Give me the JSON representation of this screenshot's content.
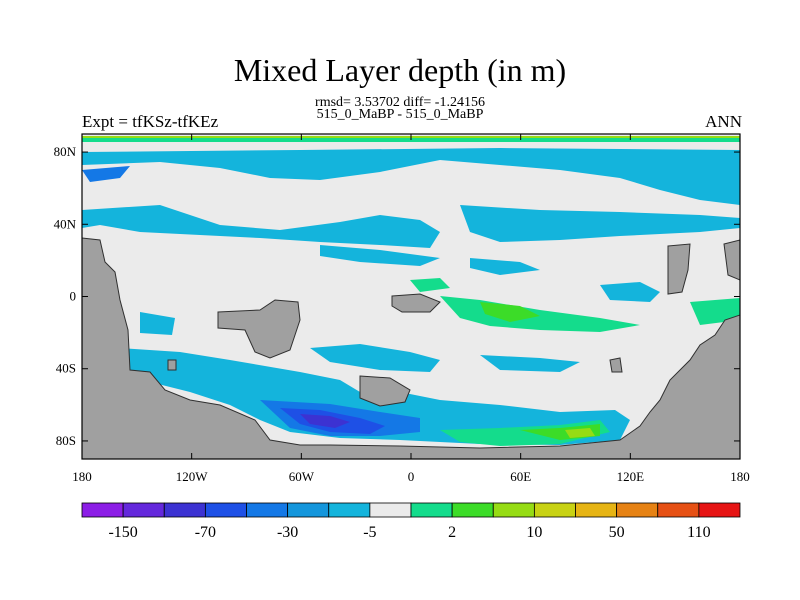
{
  "title": "Mixed Layer depth (in m)",
  "stats": "rmsd= 3.53702 diff= -1.24156",
  "subtitle": "515_0_MaBP - 515_0_MaBP",
  "left_label": "Expt = tfKSz-tfKEz",
  "right_label": "ANN",
  "map": {
    "x_ticks": [
      "180",
      "120W",
      "60W",
      "0",
      "60E",
      "120E",
      "180"
    ],
    "y_ticks": [
      "80N",
      "40N",
      "0",
      "40S",
      "80S"
    ],
    "land_color": "#a0a0a0",
    "ocean_neutral_color": "#ebebeb"
  },
  "colorbar": {
    "colors": [
      "#8c1ee6",
      "#6428dc",
      "#3c32d2",
      "#1e50e6",
      "#1478e6",
      "#1496dc",
      "#14b4dc",
      "#ebebeb",
      "#14dc8c",
      "#3cdc28",
      "#96dc14",
      "#c8d214",
      "#e6b414",
      "#e68214",
      "#e65014",
      "#e61414"
    ],
    "labels": [
      "-150",
      "-70",
      "-30",
      "-5",
      "2",
      "10",
      "50",
      "110"
    ]
  }
}
